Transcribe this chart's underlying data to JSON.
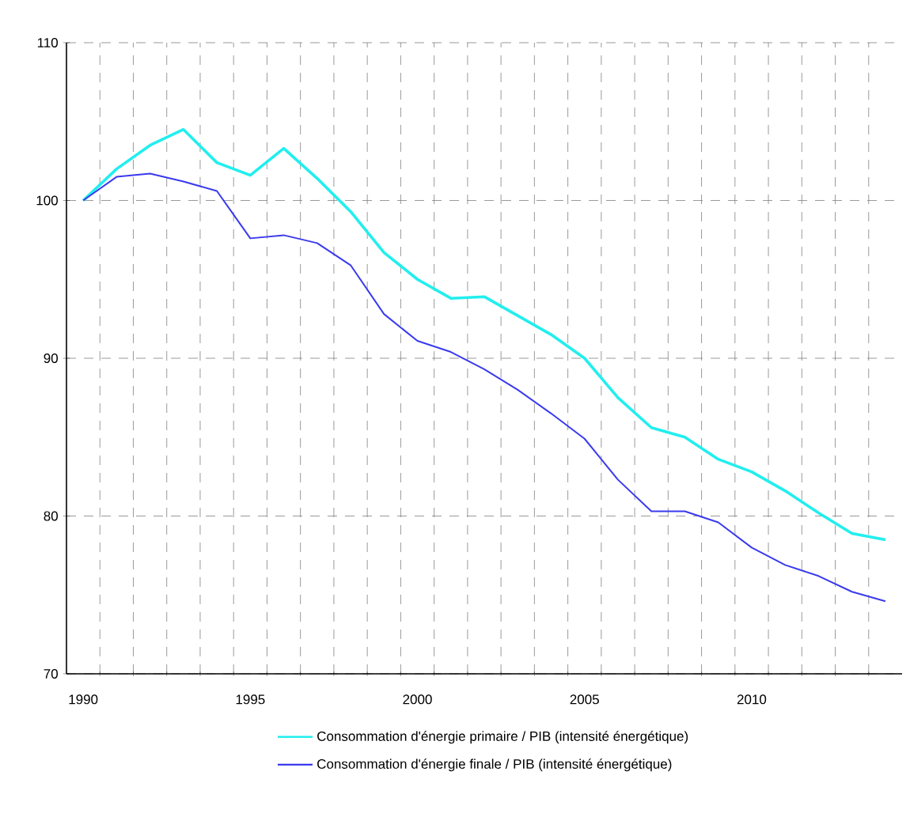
{
  "chart_data": {
    "type": "line",
    "categories": [
      "1990",
      null,
      null,
      null,
      null,
      "1995",
      null,
      null,
      null,
      null,
      "2000",
      null,
      null,
      null,
      null,
      "2005",
      null,
      null,
      null,
      null,
      "2010",
      null,
      null,
      null,
      null
    ],
    "series": [
      {
        "name": "Consommation d'énergie primaire / PIB (intensité énergétique)",
        "color": "#22eeee",
        "values": [
          100,
          102.0,
          103.5,
          104.5,
          102.4,
          101.6,
          103.3,
          101.4,
          99.3,
          96.7,
          95.0,
          93.8,
          93.9,
          92.7,
          91.5,
          90.0,
          87.5,
          85.6,
          85.0,
          83.6,
          82.8,
          81.6,
          80.2,
          78.9,
          78.5
        ]
      },
      {
        "name": "Consommation d'énergie finale / PIB (intensité énergétique)",
        "color": "#3a3aee",
        "values": [
          100,
          101.5,
          101.7,
          101.2,
          100.6,
          97.6,
          97.8,
          97.3,
          95.9,
          92.8,
          91.1,
          90.4,
          89.3,
          88.0,
          86.5,
          84.9,
          82.3,
          80.3,
          80.3,
          79.6,
          78.0,
          76.9,
          76.2,
          75.2,
          74.6
        ]
      }
    ],
    "ylim": [
      70,
      110
    ],
    "yticks": [
      70,
      80,
      90,
      100,
      110
    ],
    "grid": true,
    "legend": "bottom"
  }
}
